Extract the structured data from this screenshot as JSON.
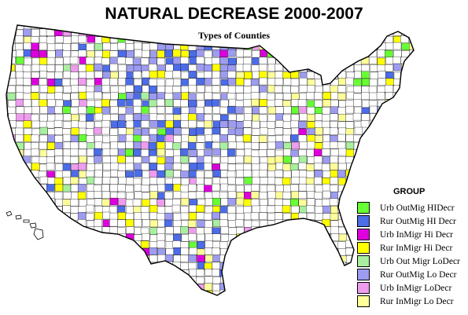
{
  "title": "NATURAL DECREASE 2000-2007",
  "subtitle": "Types of Counties",
  "legend": {
    "title": "GROUP",
    "items": [
      {
        "label": "Urb OutMig HIDecr",
        "color": "#66ff33"
      },
      {
        "label": "Rur OutMig HI Decr",
        "color": "#4c6ce8"
      },
      {
        "label": "Urb InMigr Hi Decr",
        "color": "#dd00dd"
      },
      {
        "label": "Rur InMigr Hi Decr",
        "color": "#ffff00"
      },
      {
        "label": "Urb Out Migr LoDecr",
        "color": "#a8f0a0"
      },
      {
        "label": "Rur OutMig Lo Decr",
        "color": "#9d9cf0"
      },
      {
        "label": "Urb InMigr LoDecr",
        "color": "#ee9cee"
      },
      {
        "label": "Rur InMigr Lo Decr",
        "color": "#ffff99"
      }
    ]
  },
  "map": {
    "background_fill": "#ffffff",
    "border_color": "#000000"
  }
}
